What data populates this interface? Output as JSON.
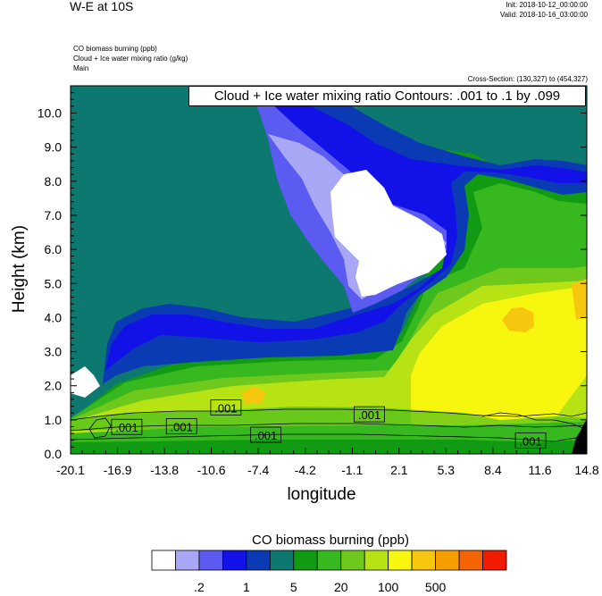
{
  "header": {
    "title": "W-E at 10S",
    "init": "Init: 2018-10-12_00:00:00",
    "valid": "Valid: 2018-10-16_03:00:00"
  },
  "field_lines": [
    "CO biomass burning   (ppb)",
    "Cloud + Ice water mixing ratio   (g/kg)",
    "Main"
  ],
  "cross_section": "Cross-Section: (130,327) to (454,327)",
  "contour_label": "Cloud + Ice water mixing ratio Contours: .001 to .1 by .099",
  "chart_data": {
    "type": "heatmap",
    "title": "W-E at 10S",
    "xlabel": "longitude",
    "ylabel": "Height (km)",
    "xlim": [
      -20.1,
      14.8
    ],
    "ylim": [
      0.0,
      10.8
    ],
    "x_ticks": [
      "-20.1",
      "-16.9",
      "-13.8",
      "-10.6",
      "-7.4",
      "-4.2",
      "-1.1",
      "2.1",
      "5.3",
      "8.4",
      "11.6",
      "14.8"
    ],
    "y_ticks": [
      "0.0",
      "1.0",
      "2.0",
      "3.0",
      "4.0",
      "5.0",
      "6.0",
      "7.0",
      "8.0",
      "9.0",
      "10.0"
    ],
    "colorbar": {
      "title": "CO biomass burning  (ppb)",
      "colors": [
        "#ffffff",
        "#a7a7f5",
        "#5b5bf1",
        "#1212e8",
        "#0a3bb4",
        "#0c7870",
        "#119b13",
        "#36b81e",
        "#6ec91c",
        "#b7e314",
        "#f6f60f",
        "#f7c60e",
        "#f69d00",
        "#f56403",
        "#f11c00"
      ],
      "labels": [
        ".2",
        "1",
        "5",
        "20",
        "100",
        "500"
      ],
      "label_positions": [
        1,
        3,
        5,
        7,
        9,
        11
      ]
    },
    "contour_labels": [
      {
        "text": ".001",
        "lon": -16.3,
        "h": 0.78
      },
      {
        "text": ".001",
        "lon": -12.6,
        "h": 0.8
      },
      {
        "text": ".001",
        "lon": -9.6,
        "h": 1.35
      },
      {
        "text": ".001",
        "lon": -6.9,
        "h": 0.55
      },
      {
        "text": ".001",
        "lon": 0.1,
        "h": 1.15
      },
      {
        "text": ".001",
        "lon": 11.0,
        "h": 0.38
      }
    ]
  }
}
